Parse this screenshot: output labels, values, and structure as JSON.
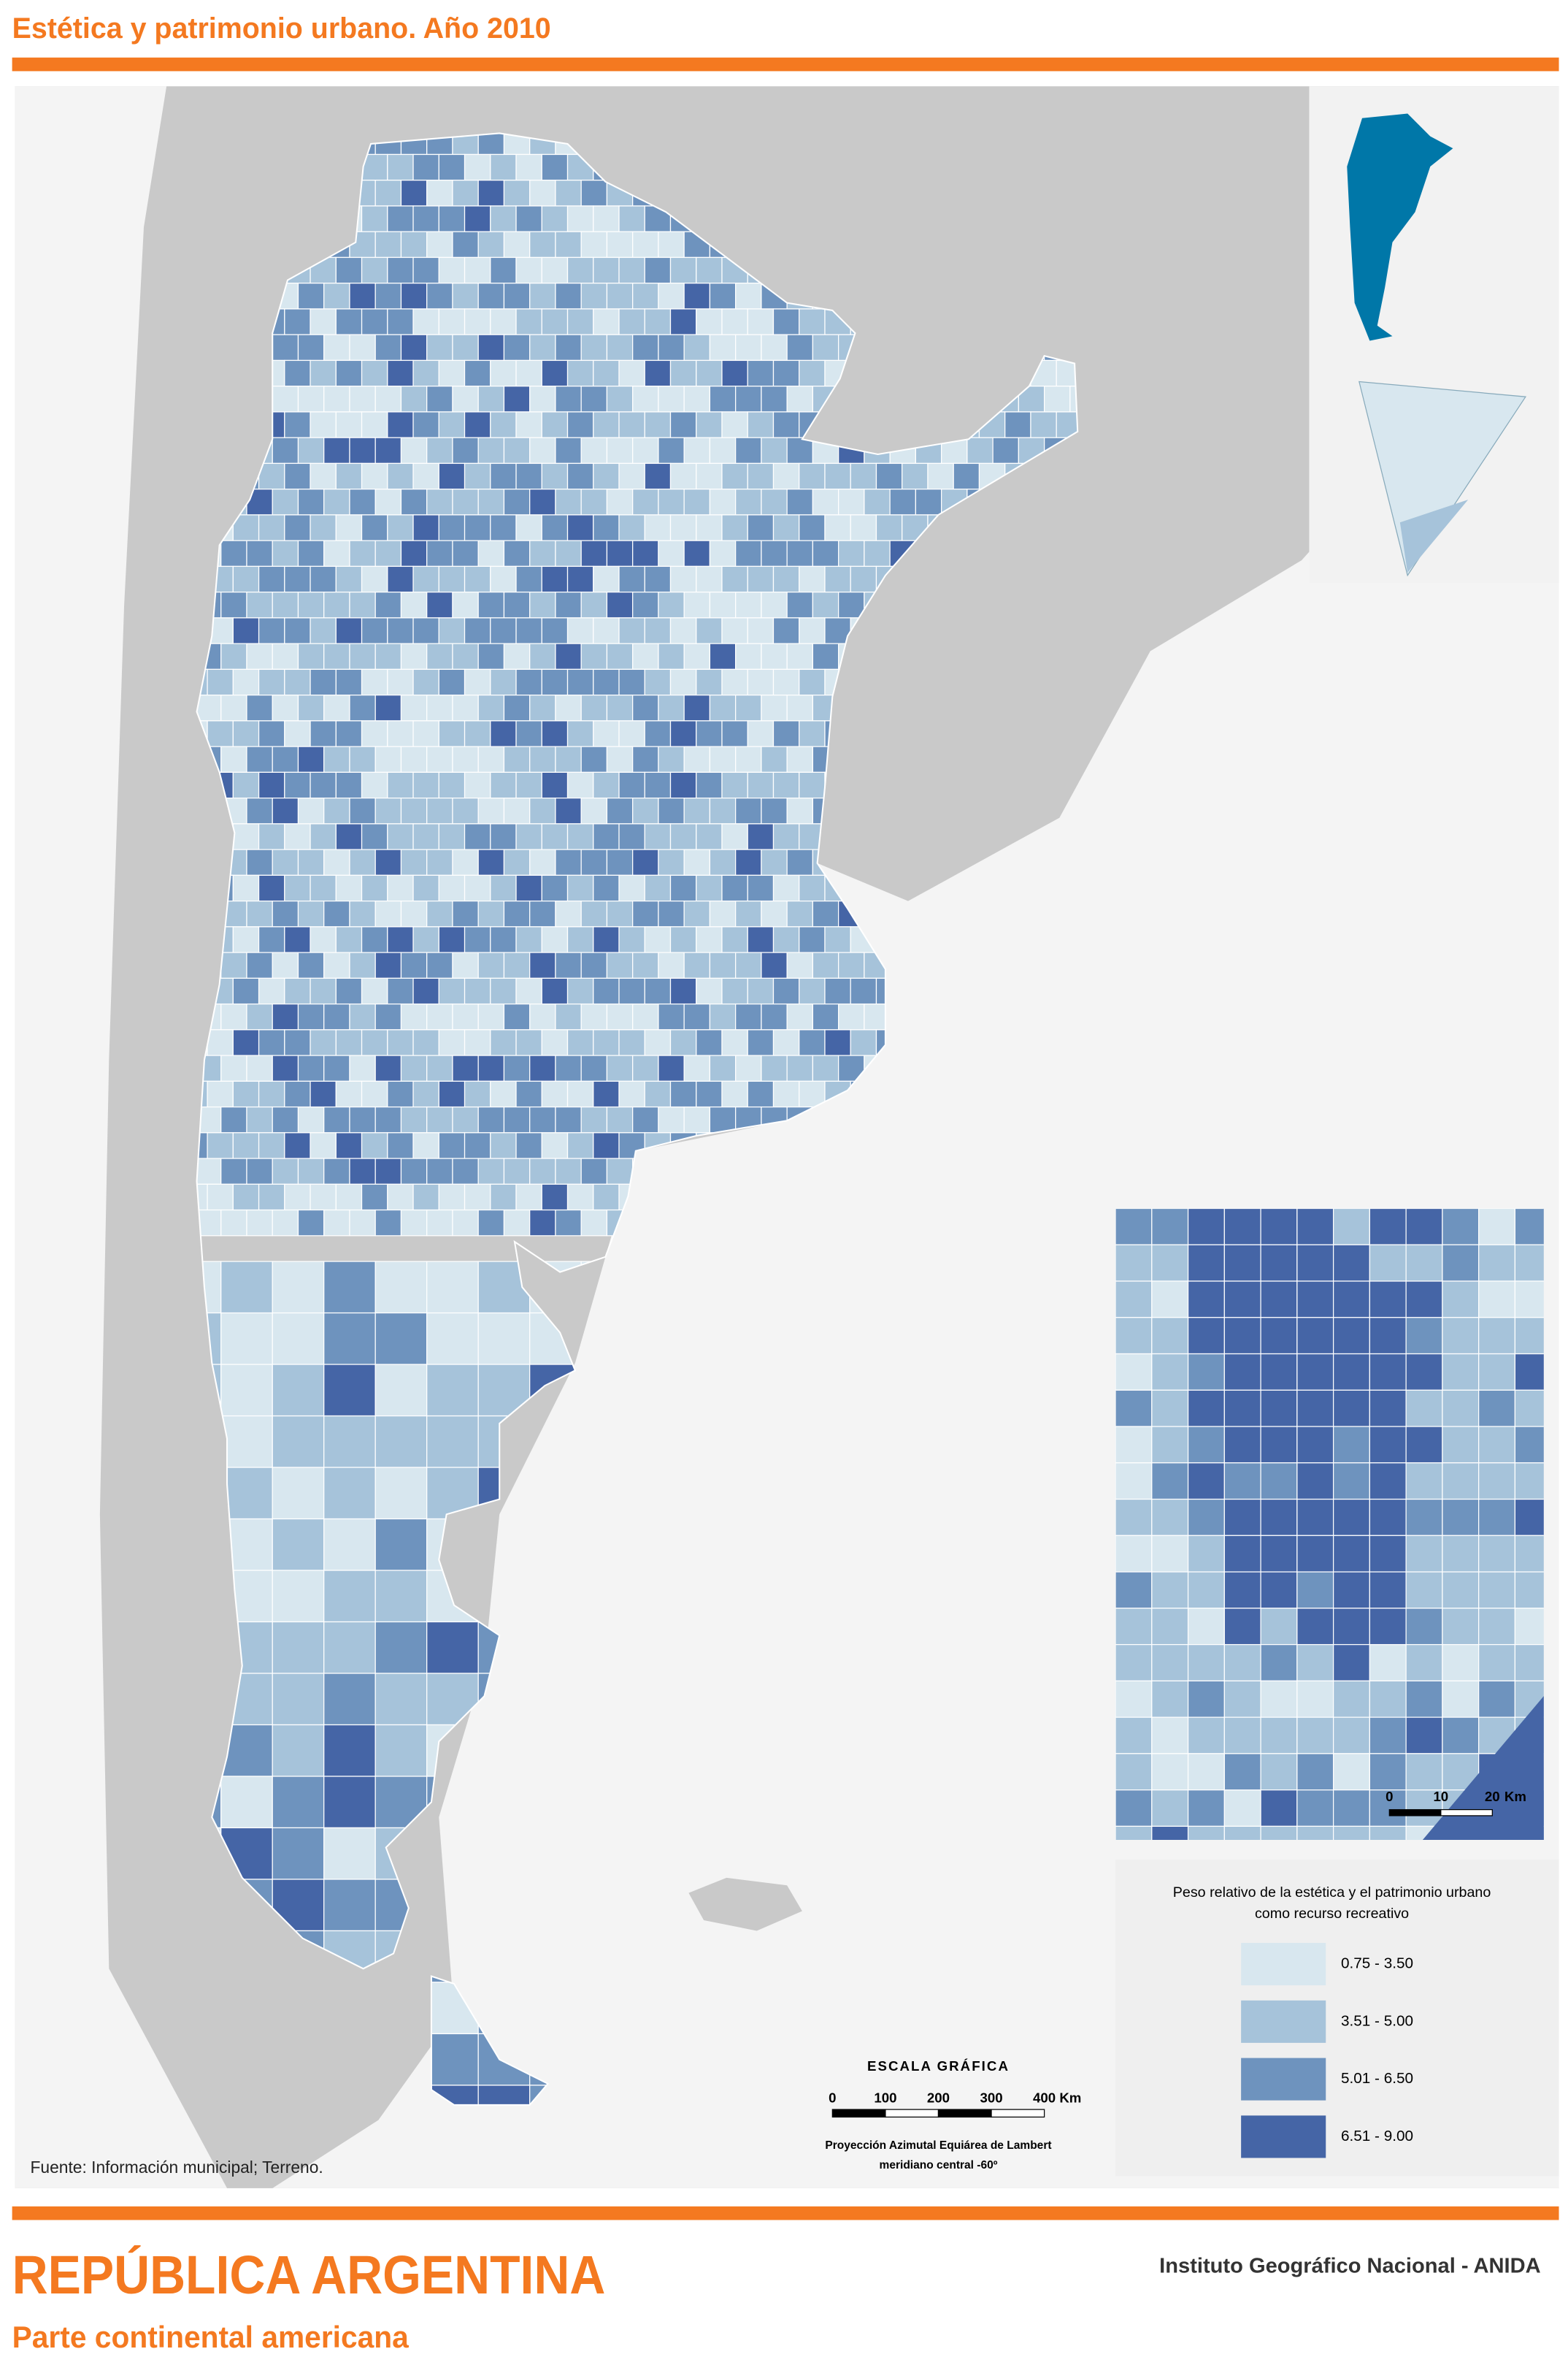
{
  "header": {
    "title": "Estética y patrimonio urbano. Año 2010"
  },
  "legend": {
    "title_lines": [
      "Peso relativo de la estética y el patrimonio urbano",
      "como recurso recreativo"
    ],
    "classes": [
      {
        "label": "0.75 - 3.50",
        "color": "#d8e7ef"
      },
      {
        "label": "3.51 - 5.00",
        "color": "#a6c3da"
      },
      {
        "label": "5.01 - 6.50",
        "color": "#6e93be"
      },
      {
        "label": "6.51 - 9.00",
        "color": "#4565a6"
      }
    ]
  },
  "scale": {
    "title": "ESCALA GRÁFICA",
    "ticks": [
      "0",
      "100",
      "200",
      "300",
      "400"
    ],
    "unit": "Km",
    "projection": [
      "Proyección Azimutal Equiárea de Lambert",
      "meridiano central -60º"
    ]
  },
  "inset_scale": {
    "ticks": [
      "0",
      "10",
      "20"
    ],
    "unit": "Km"
  },
  "source": "Fuente: Información municipal; Terreno.",
  "footer": {
    "title": "REPÚBLICA ARGENTINA",
    "subtitle": "Parte continental americana",
    "institution": "Instituto Geográfico Nacional - ANIDA"
  }
}
